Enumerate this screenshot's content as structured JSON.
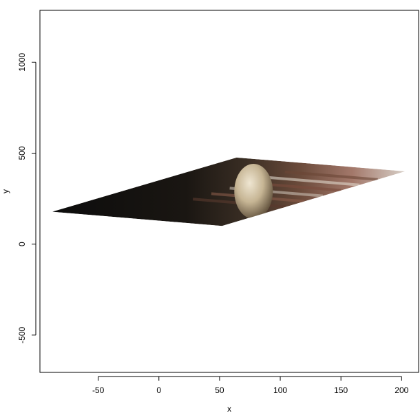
{
  "chart_data": {
    "type": "image-plot",
    "title": "",
    "xlabel": "x",
    "ylabel": "y",
    "xlim": [
      -98,
      214
    ],
    "ylim": [
      -705,
      1285
    ],
    "x_ticks": [
      -50,
      0,
      50,
      100,
      150,
      200
    ],
    "y_ticks": [
      -500,
      0,
      500,
      1000
    ],
    "x_tick_labels": [
      "-50",
      "0",
      "50",
      "100",
      "150",
      "200"
    ],
    "y_tick_labels": [
      "-500",
      "0",
      "500",
      "1000"
    ],
    "grid": false,
    "legend": "none",
    "image_quad": [
      {
        "x": -88,
        "y": 178
      },
      {
        "x": 52,
        "y": 100
      },
      {
        "x": 203,
        "y": 400
      },
      {
        "x": 64,
        "y": 476
      }
    ],
    "skull_anchor": {
      "x": 78,
      "y": 290
    }
  }
}
